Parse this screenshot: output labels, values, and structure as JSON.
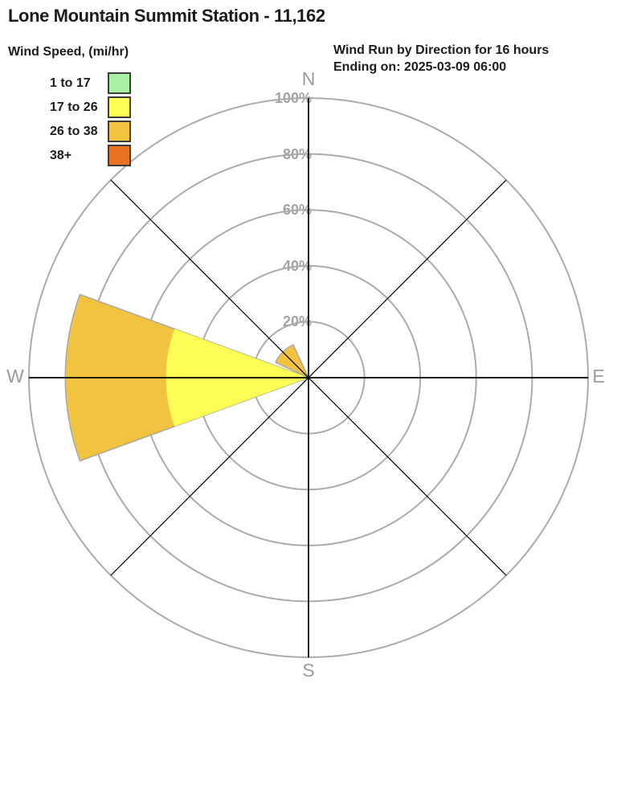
{
  "header": {
    "title": "Lone Mountain Summit Station - 11,162"
  },
  "legend": {
    "title": "Wind Speed, (mi/hr)"
  },
  "chart_data": {
    "type": "wind_rose",
    "title": "Wind Run by Direction for 16 hours",
    "subtitle": "Ending on: 2025-03-09 06:00",
    "units": "percent of wind run",
    "ring_ticks_percent": [
      20,
      40,
      60,
      80,
      100
    ],
    "ring_tick_labels": [
      "20%",
      "40%",
      "60%",
      "80%",
      "100%"
    ],
    "cardinals": {
      "n": "N",
      "e": "E",
      "s": "S",
      "w": "W"
    },
    "speed_bins": [
      {
        "label": "1 to 17",
        "color": "#a9f0a2"
      },
      {
        "label": "17 to 26",
        "color": "#fdfd55"
      },
      {
        "label": "26 to 38",
        "color": "#f1c33e"
      },
      {
        "label": "38+",
        "color": "#e8721f"
      }
    ],
    "sectors": [
      {
        "direction": "W",
        "center_angle_deg": 270,
        "stack": [
          {
            "bin": "17 to 26",
            "from_pct": 0,
            "to_pct": 51
          },
          {
            "bin": "26 to 38",
            "from_pct": 51,
            "to_pct": 87
          }
        ]
      },
      {
        "direction": "NW",
        "center_angle_deg": 315,
        "stack": [
          {
            "bin": "26 to 38",
            "from_pct": 0,
            "to_pct": 13
          }
        ]
      }
    ],
    "grid_color": "#ababab",
    "axis_color": "#000000"
  }
}
